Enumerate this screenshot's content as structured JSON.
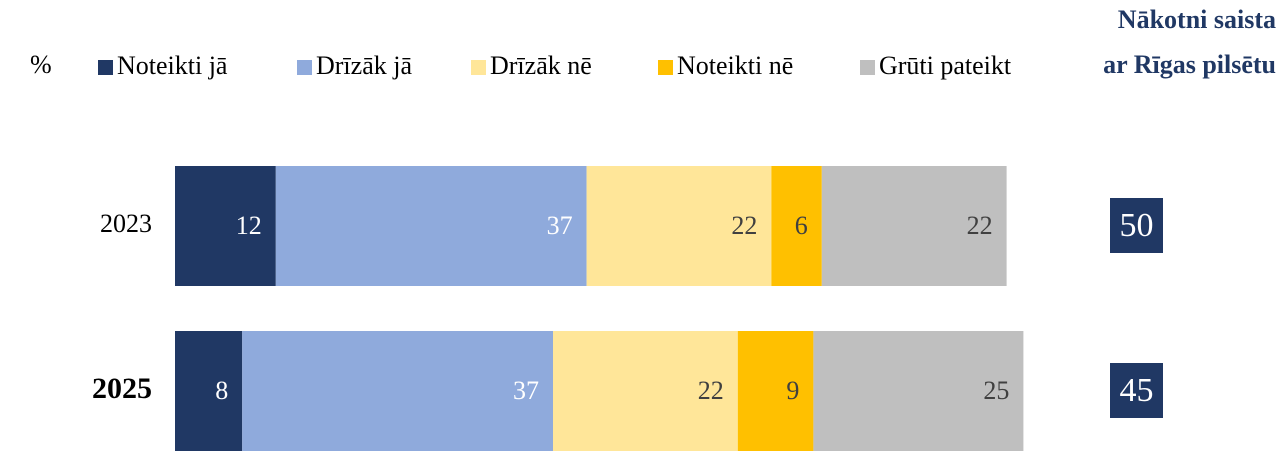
{
  "chart_data": {
    "type": "stacked_barh",
    "unit_label": "%",
    "categories": [
      "2023",
      "2025"
    ],
    "series": [
      {
        "name": "Noteikti jā",
        "color": "#203864",
        "label_color": "#ffffff",
        "values": [
          12,
          8
        ]
      },
      {
        "name": "Drīzāk jā",
        "color": "#8faadc",
        "label_color": "#ffffff",
        "values": [
          37,
          37
        ]
      },
      {
        "name": "Drīzāk nē",
        "color": "#ffe699",
        "label_color": "#404040",
        "values": [
          22,
          22
        ]
      },
      {
        "name": "Noteikti nē",
        "color": "#ffc000",
        "label_color": "#404040",
        "values": [
          6,
          9
        ]
      },
      {
        "name": "Grūti pateikt",
        "color": "#bfbfbf",
        "label_color": "#404040",
        "values": [
          22,
          25
        ]
      }
    ],
    "side_title": [
      "Nākotni saista",
      "ar Rīgas pilsētu"
    ],
    "side_values": [
      50,
      45
    ],
    "side_color": "#203864"
  }
}
